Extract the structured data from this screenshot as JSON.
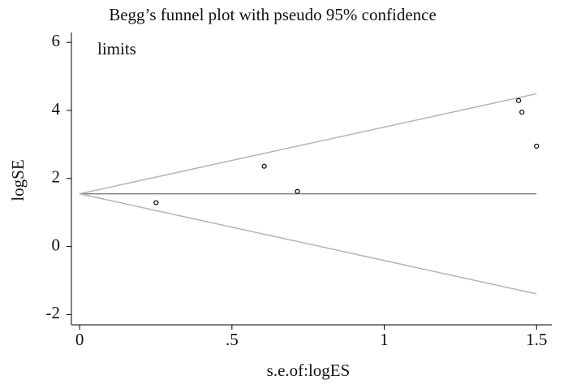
{
  "chart_data": {
    "type": "scatter",
    "title": [
      "Begg’s funnel plot with pseudo 95% confidence",
      "limits"
    ],
    "xlabel": "s.e.of:logES",
    "ylabel": "logSE",
    "x": [
      0.251,
      0.606,
      0.715,
      1.441,
      1.452,
      1.5
    ],
    "values": [
      1.29,
      2.36,
      1.62,
      4.29,
      3.95,
      2.95
    ],
    "color": "#000000",
    "lines": [
      {
        "x": [
          0,
          1.5
        ],
        "values": [
          1.55,
          1.55
        ],
        "color": "#808080"
      },
      {
        "x": [
          0,
          1.5
        ],
        "values": [
          1.55,
          4.49
        ],
        "color": "#b4b4b4"
      },
      {
        "x": [
          0,
          1.5
        ],
        "values": [
          1.55,
          -1.39
        ],
        "color": "#b4b4b4"
      }
    ],
    "xlim": [
      -0.027,
      1.55
    ],
    "ylim": [
      -2.3,
      6.29
    ],
    "xticks": [
      0,
      {
        "value": 0.5,
        "label": ".5"
      },
      1,
      1.5
    ],
    "yticks": [
      -2,
      0,
      2,
      4,
      6
    ]
  }
}
